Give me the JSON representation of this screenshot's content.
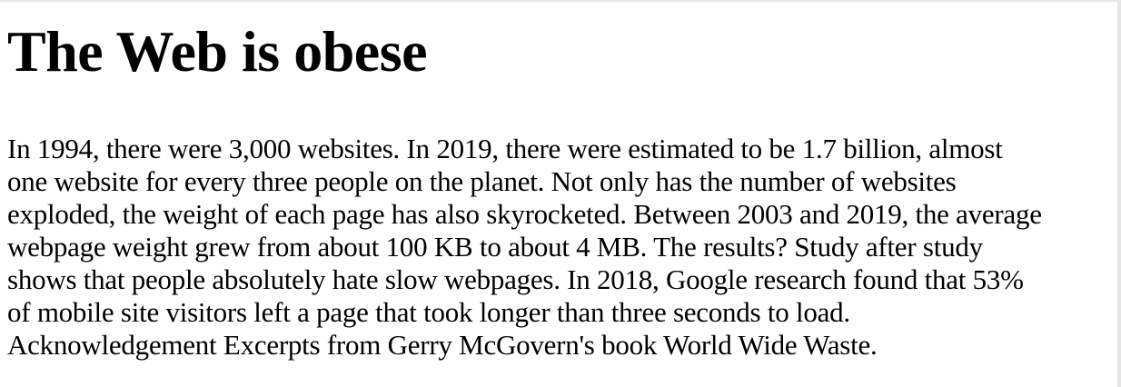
{
  "heading": {
    "title": "The Web is obese"
  },
  "article": {
    "lines": [
      "In 1994, there were 3,000 websites. In 2019, there were estimated to be 1.7 billion, almost",
      "one website for every three people on the planet. Not only has the number of websites",
      "exploded, the weight of each page has also skyrocketed. Between 2003 and 2019, the average",
      "webpage weight grew from about 100 KB to about 4 MB. The results? Study after study",
      "shows that people absolutely hate slow webpages. In 2018, Google research found that 53%",
      "of mobile site visitors left a page that took longer than three seconds to load.",
      "Acknowledgement Excerpts from Gerry McGovern's book World Wide Waste."
    ]
  }
}
